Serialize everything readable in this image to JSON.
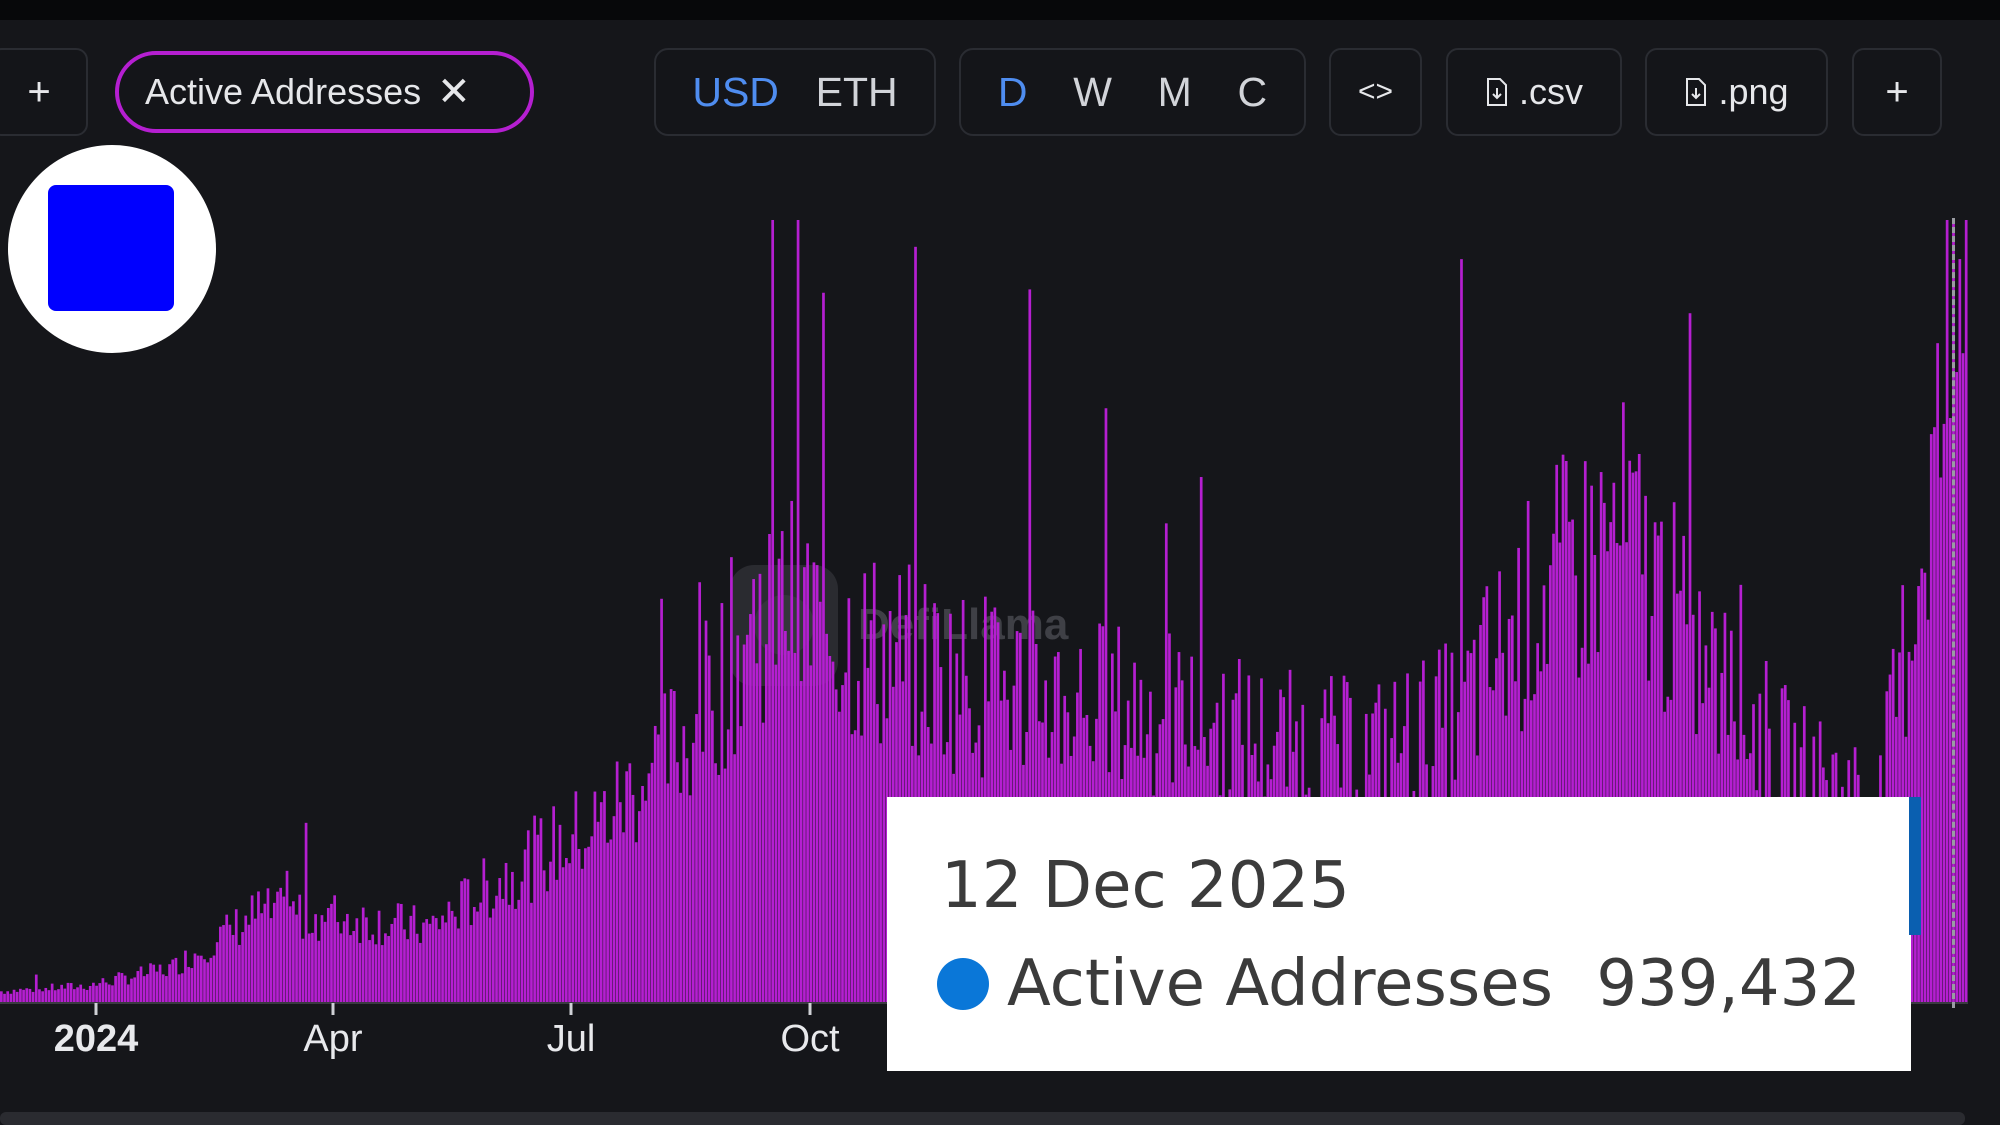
{
  "toolbar": {
    "add_left_label": "+",
    "metric_pill_label": "Active Addresses",
    "metric_pill_close": "✕",
    "currency_options": [
      "USD",
      "ETH"
    ],
    "currency_selected": "USD",
    "period_options": [
      "D",
      "W",
      "M",
      "C"
    ],
    "period_selected": "D",
    "embed_label": "<>",
    "csv_label": ".csv",
    "png_label": ".png",
    "add_right_label": "+"
  },
  "watermark": "DefiLlama",
  "colors": {
    "bar": "#b51fd1",
    "pill_border": "#b51fd1",
    "active_toggle": "#4f8df0",
    "tooltip_dot": "#0a77d8",
    "logo_square": "#0000ff"
  },
  "chart_data": {
    "type": "bar",
    "series": [
      {
        "name": "Active Addresses",
        "values_description": "daily active addresses, approx 2024-01 to 2025-12"
      }
    ],
    "x_ticks": [
      "2024",
      "Apr",
      "Jul",
      "Oct"
    ],
    "approx_monthly_values": [
      {
        "x": "2024-01",
        "y": 15000
      },
      {
        "x": "2024-02",
        "y": 22000
      },
      {
        "x": "2024-03",
        "y": 45000
      },
      {
        "x": "2024-04",
        "y": 115000
      },
      {
        "x": "2024-05",
        "y": 110000
      },
      {
        "x": "2024-06",
        "y": 95000
      },
      {
        "x": "2024-07",
        "y": 170000
      },
      {
        "x": "2024-08",
        "y": 230000
      },
      {
        "x": "2024-09",
        "y": 340000
      },
      {
        "x": "2024-10",
        "y": 520000
      },
      {
        "x": "2024-11",
        "y": 460000
      },
      {
        "x": "2024-12",
        "y": 420000
      },
      {
        "x": "2025-01",
        "y": 400000
      },
      {
        "x": "2025-02",
        "y": 380000
      },
      {
        "x": "2025-03",
        "y": 360000
      },
      {
        "x": "2025-04",
        "y": 330000
      },
      {
        "x": "2025-05",
        "y": 320000
      },
      {
        "x": "2025-06",
        "y": 360000
      },
      {
        "x": "2025-07",
        "y": 520000
      },
      {
        "x": "2025-08",
        "y": 600000
      },
      {
        "x": "2025-09",
        "y": 420000
      },
      {
        "x": "2025-10",
        "y": 300000
      },
      {
        "x": "2025-11",
        "y": 260000
      },
      {
        "x": "2025-12",
        "y": 939432
      }
    ],
    "grid": false,
    "legend": "none"
  },
  "tooltip": {
    "date": "12 Dec 2025",
    "series_label": "Active Addresses",
    "value": "939,432"
  }
}
